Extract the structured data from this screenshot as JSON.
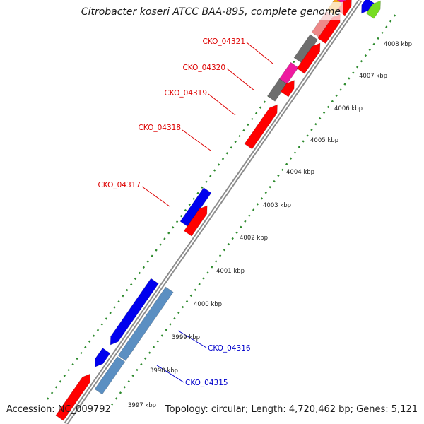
{
  "title": "Citrobacter koseri ATCC BAA-895, complete genome",
  "footer": {
    "accession": "Accession: NC_009792",
    "summary": "Topology: circular; Length: 4,720,462 bp; Genes: 5,121"
  },
  "ticks": [
    "3997 kbp",
    "3998 kbp",
    "3999 kbp",
    "4000 kbp",
    "4001 kbp",
    "4002 kbp",
    "4003 kbp",
    "4004 kbp",
    "4005 kbp",
    "4006 kbp",
    "4007 kbp",
    "4008 kbp"
  ],
  "gene_labels": [
    {
      "text": "CKO_04321",
      "strand": "forward"
    },
    {
      "text": "CKO_04320",
      "strand": "forward"
    },
    {
      "text": "CKO_04319",
      "strand": "forward"
    },
    {
      "text": "CKO_04318",
      "strand": "forward"
    },
    {
      "text": "CKO_04317",
      "strand": "forward"
    },
    {
      "text": "CKO_04316",
      "strand": "reverse"
    },
    {
      "text": "CKO_04315",
      "strand": "reverse"
    }
  ],
  "colors": {
    "forward_label": "#dd0000",
    "reverse_label": "#0000cc",
    "cds_red": "#ff0000",
    "cds_blue": "#0000ee",
    "cds_steelblue": "#5b8fc2",
    "cds_magenta": "#ee1aa0",
    "cds_gray": "#6e6e6e",
    "cds_salmon": "#ee8888",
    "cds_orange": "#f5a623",
    "cds_green": "#77dd22",
    "backbone": "#8c8c8c",
    "gc_dots": "#2d8a2d"
  }
}
